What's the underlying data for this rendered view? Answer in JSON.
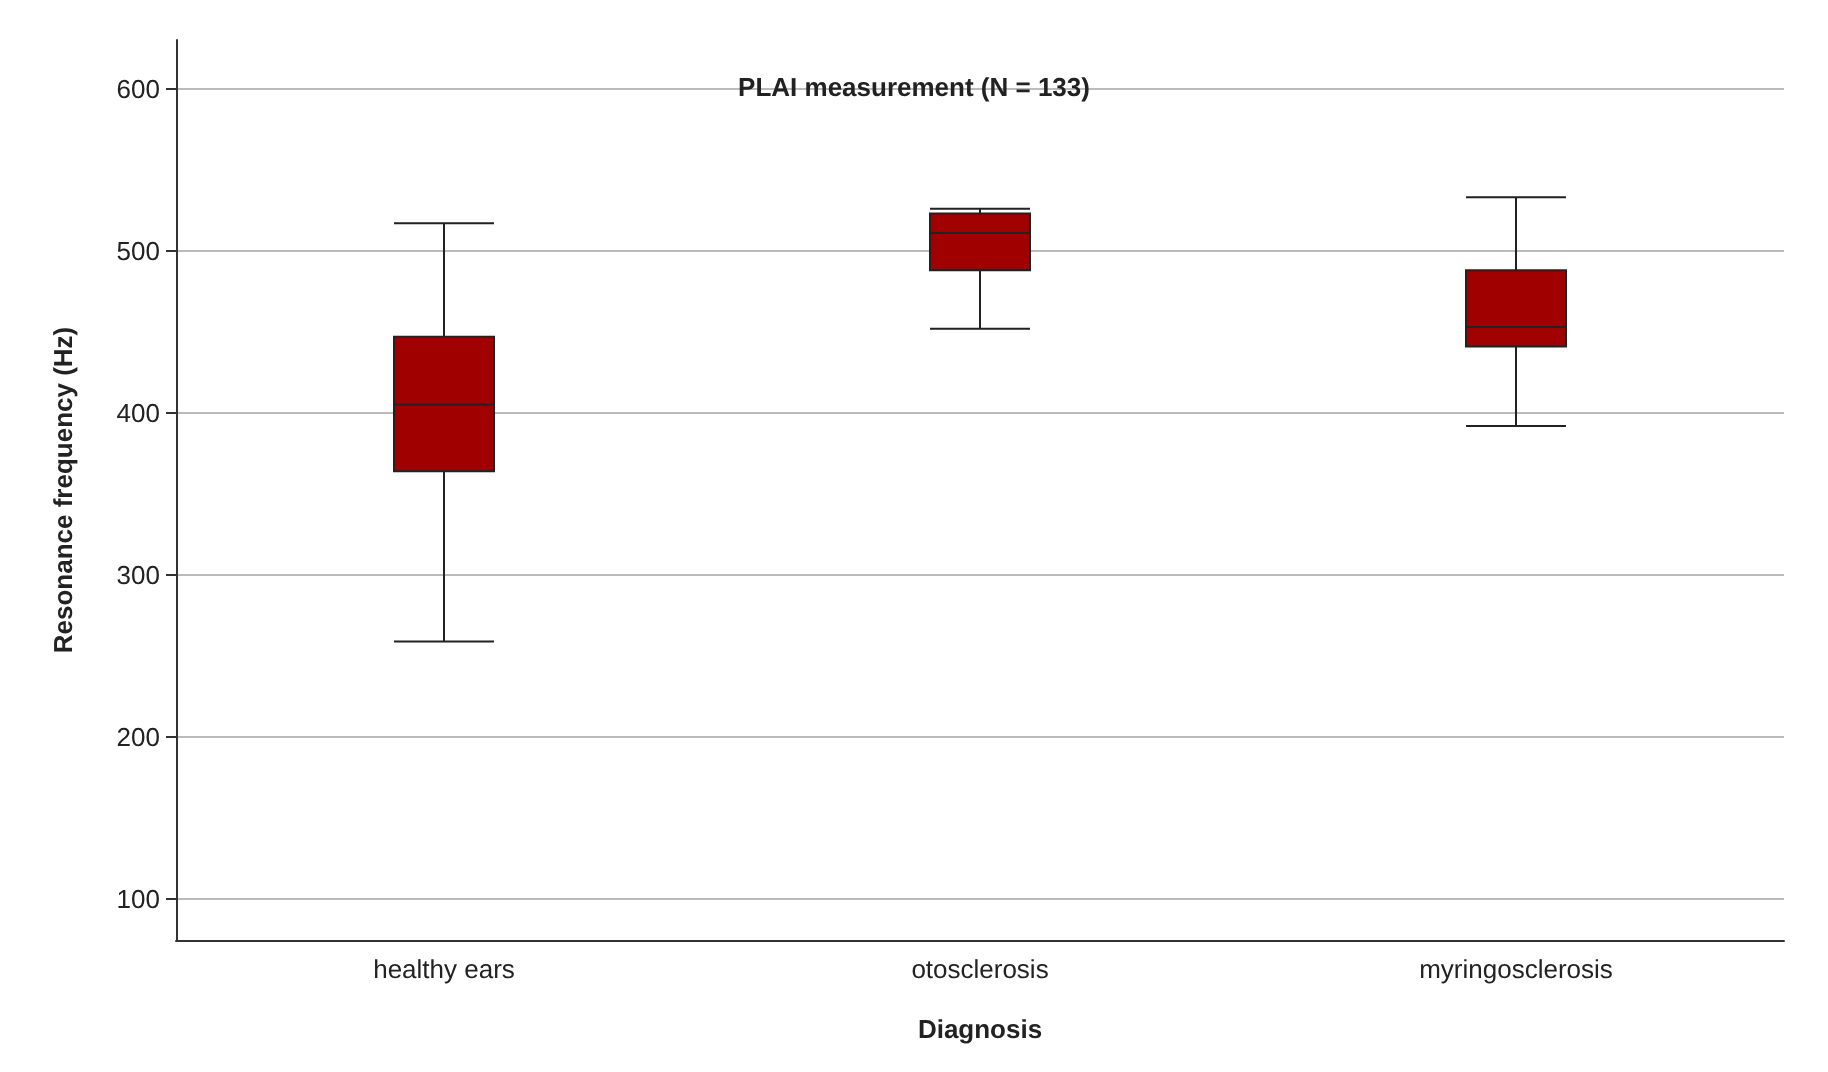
{
  "chart_data": {
    "type": "box",
    "title": "PLAI measurement (N = 133)",
    "xlabel": "Diagnosis",
    "ylabel": "Resonance frequency (Hz)",
    "categories": [
      "healthy ears",
      "otosclerosis",
      "myringosclerosis"
    ],
    "boxes": [
      {
        "low": 259,
        "q1": 364,
        "median": 405,
        "q3": 447,
        "high": 517
      },
      {
        "low": 452,
        "q1": 488,
        "median": 511,
        "q3": 523,
        "high": 526
      },
      {
        "low": 392,
        "q1": 441,
        "median": 453,
        "q3": 488,
        "high": 533
      }
    ],
    "color": "#a00000",
    "ylim": [
      75,
      630
    ],
    "yticks": [
      100,
      200,
      300,
      400,
      500,
      600
    ],
    "grid": "y"
  }
}
